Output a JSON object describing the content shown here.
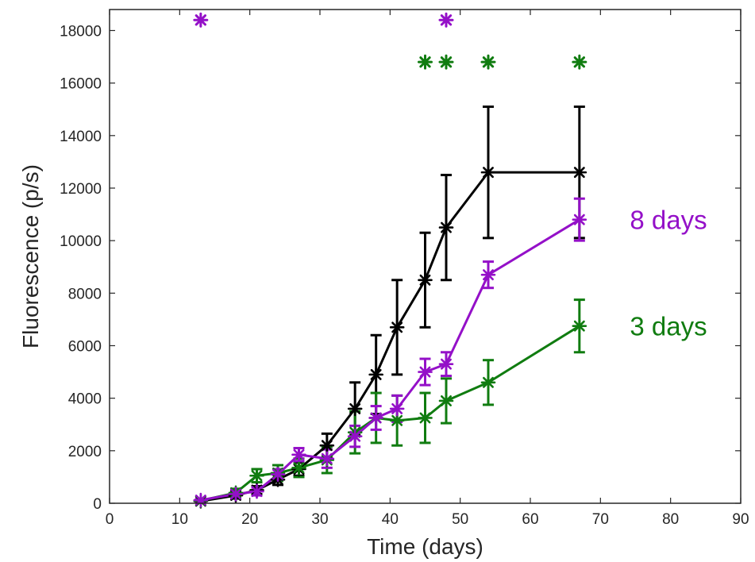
{
  "chart_data": {
    "type": "line",
    "title": "",
    "xlabel": "Time (days)",
    "ylabel": "Fluorescence (p/s)",
    "xlim": [
      0,
      90
    ],
    "ylim": [
      0,
      18800
    ],
    "xticks": [
      0,
      10,
      20,
      30,
      40,
      50,
      60,
      70,
      80,
      90
    ],
    "yticks": [
      0,
      2000,
      4000,
      6000,
      8000,
      10000,
      12000,
      14000,
      16000,
      18000
    ],
    "grid": false,
    "marker": "asterisk",
    "series": [
      {
        "name": "",
        "color": "#000000",
        "x": [
          13,
          18,
          21,
          24,
          27,
          31,
          35,
          38,
          41,
          45,
          48,
          54,
          67
        ],
        "y": [
          80,
          300,
          500,
          900,
          1300,
          2200,
          3600,
          4900,
          6700,
          8500,
          10500,
          12600,
          12600
        ],
        "err": [
          50,
          120,
          150,
          200,
          250,
          450,
          1000,
          1500,
          1800,
          1800,
          2000,
          2500,
          2500
        ]
      },
      {
        "name": "8 days",
        "color": "#9410c8",
        "x": [
          13,
          18,
          21,
          24,
          27,
          31,
          35,
          38,
          41,
          45,
          48,
          54,
          67
        ],
        "y": [
          120,
          350,
          450,
          1100,
          1850,
          1700,
          2550,
          3250,
          3600,
          5000,
          5300,
          8700,
          10800
        ],
        "err": [
          50,
          120,
          150,
          200,
          250,
          350,
          400,
          450,
          500,
          500,
          450,
          500,
          800
        ]
      },
      {
        "name": "3 days",
        "color": "#107c10",
        "x": [
          13,
          18,
          21,
          24,
          27,
          31,
          35,
          38,
          41,
          45,
          48,
          54,
          67
        ],
        "y": [
          100,
          400,
          1050,
          1150,
          1350,
          1650,
          2700,
          3250,
          3150,
          3250,
          3900,
          4600,
          6750
        ],
        "err": [
          50,
          150,
          250,
          300,
          350,
          500,
          800,
          950,
          950,
          950,
          850,
          850,
          1000
        ]
      }
    ],
    "significance_markers": [
      {
        "series": "8 days",
        "x": [
          13,
          48
        ],
        "y": 18400
      },
      {
        "series": "3 days",
        "x": [
          45,
          48,
          54,
          67
        ],
        "y": 16800
      }
    ]
  }
}
